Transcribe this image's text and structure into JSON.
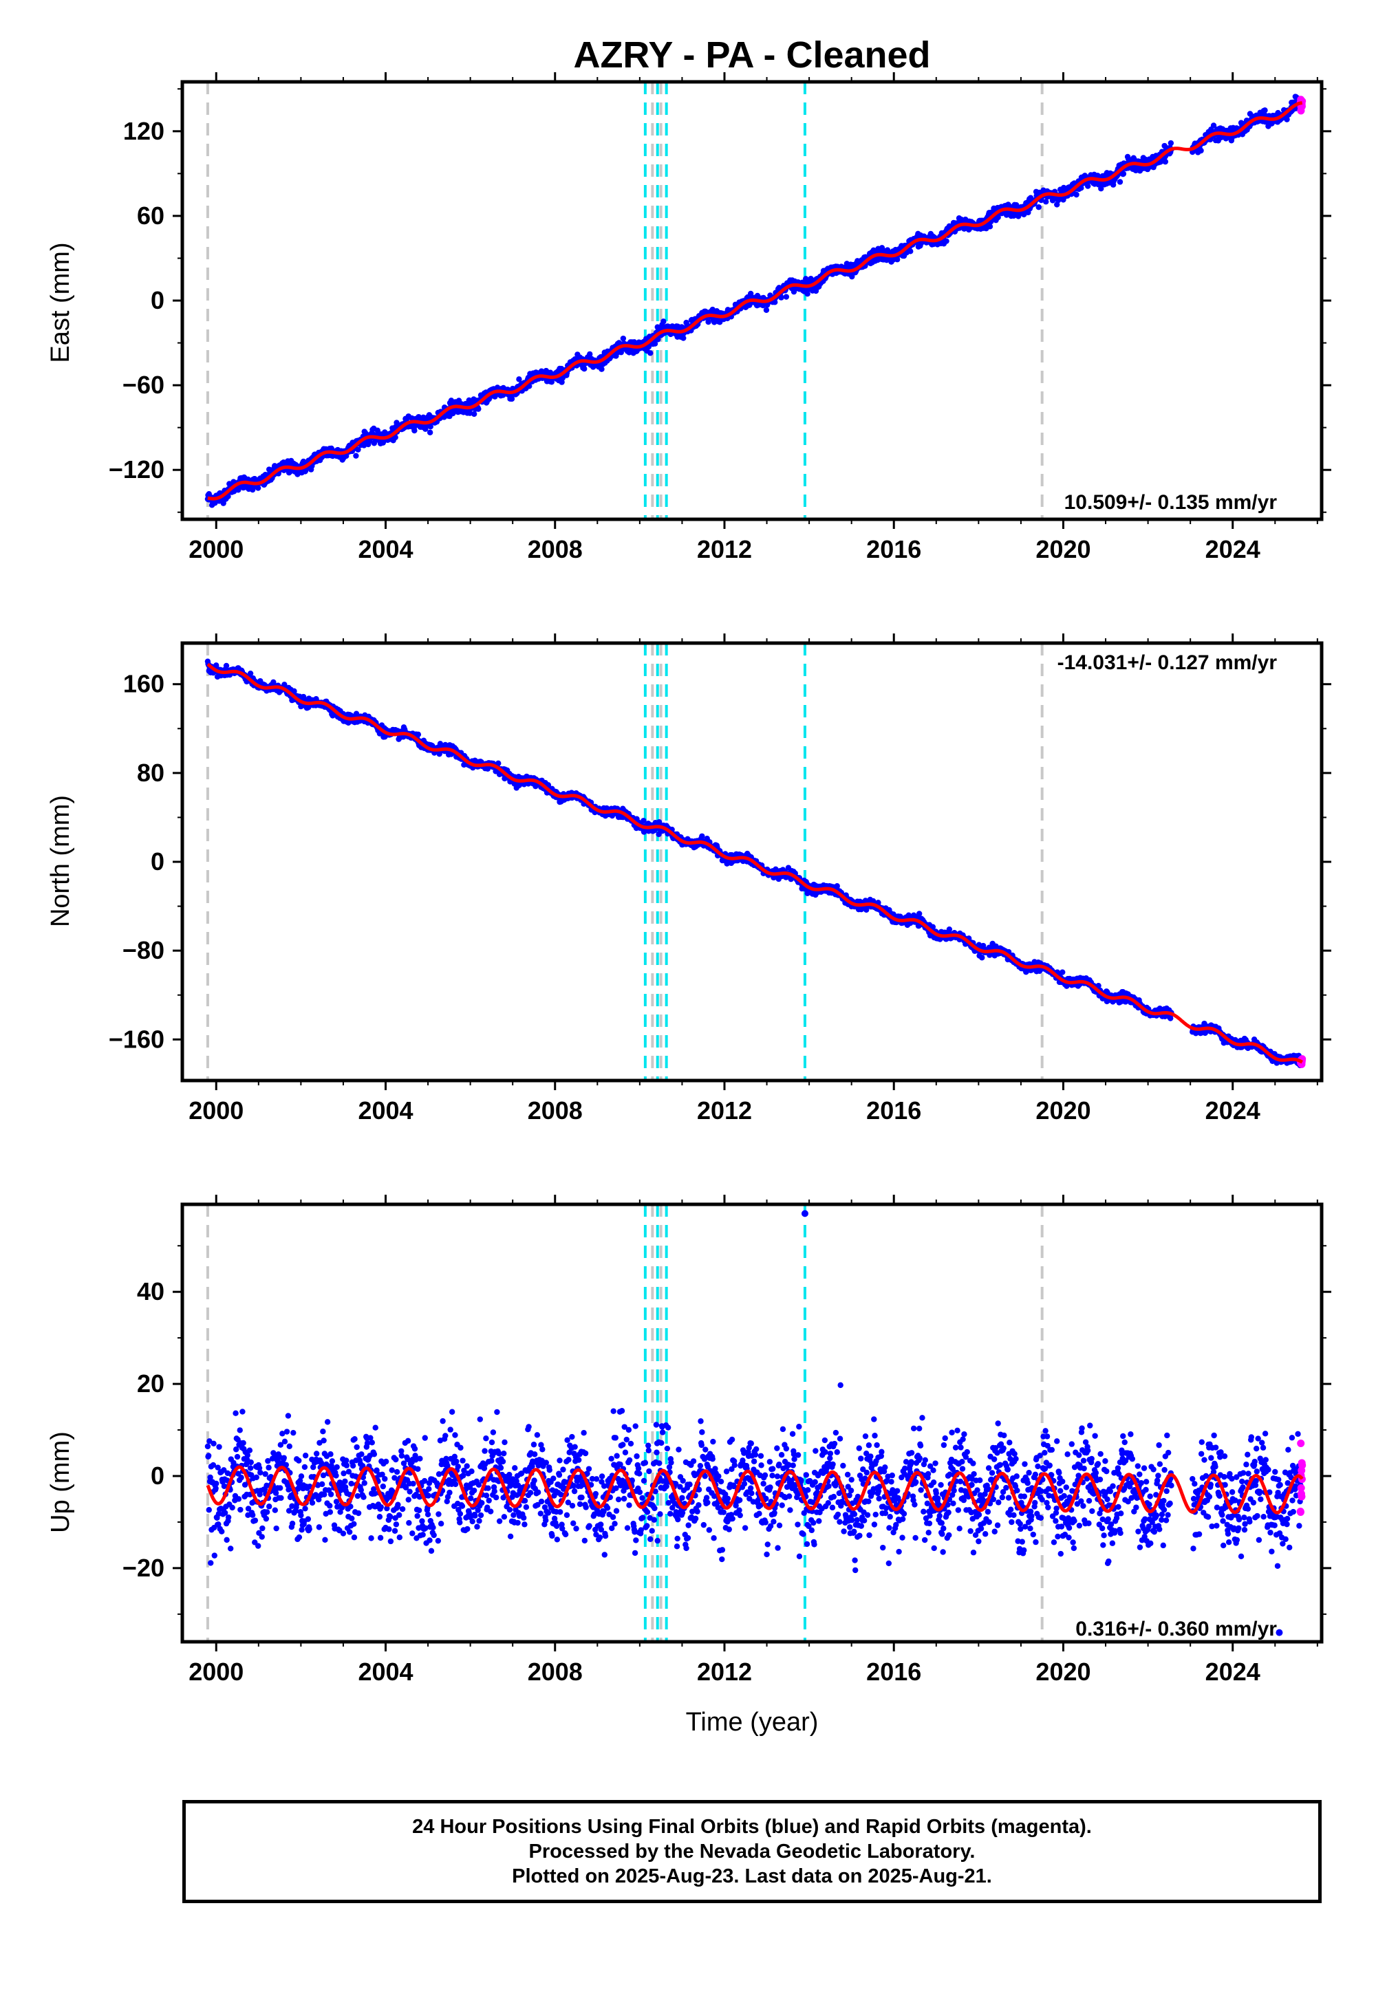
{
  "figure": {
    "title": "AZRY  - PA - Cleaned",
    "xlabel": "Time (year)"
  },
  "footer": {
    "line1": "24 Hour Positions Using Final Orbits (blue) and Rapid Orbits (magenta).",
    "line2": "Processed by the Nevada Geodetic Laboratory.",
    "line3": "Plotted on 2025-Aug-23. Last data on 2025-Aug-21."
  },
  "colors": {
    "final_orbits": "#0000ff",
    "rapid_orbits": "#ff00ff",
    "model_fit": "#ff0000",
    "equipment_change": "#c8c8c8",
    "earthquake_offset": "#00e5ee"
  },
  "chart_data": [
    {
      "type": "scatter",
      "ylabel": "East (mm)",
      "xlim": [
        1999.2,
        2026.1
      ],
      "ylim": [
        -155,
        155
      ],
      "xticks": [
        "2000",
        "2004",
        "2008",
        "2012",
        "2016",
        "2020",
        "2024"
      ],
      "yticks": [
        -120,
        -60,
        0,
        60,
        120
      ],
      "rate": "10.509+/- 0.135 mm/yr",
      "rate_position": "bottom-right",
      "start_value": -140,
      "end_value": 138,
      "series": [
        {
          "start": 1999.8,
          "end": 2022.55,
          "values_from_rate": true
        },
        {
          "start": 2023.05,
          "end": 2025.6
        },
        {
          "start": 2025.6,
          "end": 2025.64
        }
      ],
      "seasonal_amplitude": 2.5,
      "scatter_sd": 2.2,
      "grey_lines": [
        1999.8,
        2010.3,
        2010.5,
        2019.5
      ],
      "cyan_lines": [
        2010.13,
        2010.42,
        2010.63,
        2013.9
      ]
    },
    {
      "type": "scatter",
      "ylabel": "North (mm)",
      "xlim": [
        1999.2,
        2026.1
      ],
      "ylim": [
        -197,
        197
      ],
      "xticks": [
        "2000",
        "2004",
        "2008",
        "2012",
        "2016",
        "2020",
        "2024"
      ],
      "yticks": [
        -160,
        -80,
        0,
        80,
        160
      ],
      "rate": "-14.031+/- 0.127 mm/yr",
      "rate_position": "top-right",
      "start_value": 178,
      "end_value": -183,
      "series": [
        {
          "start": 1999.8,
          "end": 2022.55
        },
        {
          "start": 2023.05,
          "end": 2025.6
        },
        {
          "start": 2025.6,
          "end": 2025.64
        }
      ],
      "seasonal_amplitude": 3.0,
      "scatter_sd": 2.0,
      "grey_lines": [
        1999.8,
        2010.3,
        2010.5,
        2019.5
      ],
      "cyan_lines": [
        2010.13,
        2010.42,
        2010.63,
        2013.9
      ]
    },
    {
      "type": "scatter",
      "ylabel": "Up (mm)",
      "xlim": [
        1999.2,
        2026.1
      ],
      "ylim": [
        -36,
        59
      ],
      "xticks": [
        "2000",
        "2004",
        "2008",
        "2012",
        "2016",
        "2020",
        "2024"
      ],
      "yticks": [
        -20,
        0,
        20,
        40
      ],
      "rate": "0.316+/- 0.360 mm/yr",
      "rate_position": "bottom-right",
      "start_value": -2,
      "end_value": -4,
      "series": [
        {
          "start": 1999.8,
          "end": 2022.55
        },
        {
          "start": 2023.05,
          "end": 2025.6
        },
        {
          "start": 2025.6,
          "end": 2025.64
        }
      ],
      "seasonal_amplitude": 4.0,
      "scatter_sd": 5.0,
      "outliers": [
        [
          2013.9,
          57
        ],
        [
          2025.1,
          -34
        ]
      ],
      "grey_lines": [
        1999.8,
        2010.3,
        2010.5,
        2019.5
      ],
      "cyan_lines": [
        2010.13,
        2010.42,
        2010.63,
        2013.9
      ]
    }
  ]
}
